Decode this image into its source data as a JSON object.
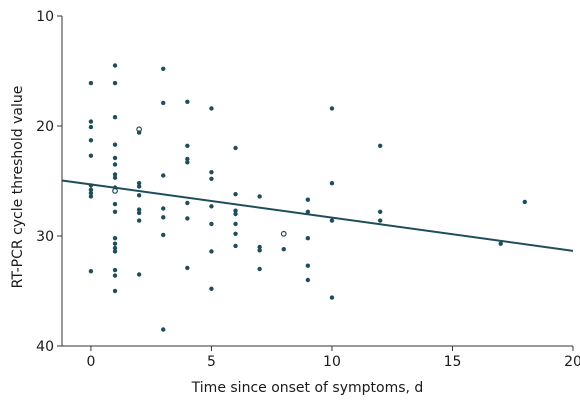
{
  "chart_data": {
    "type": "scatter",
    "title": "",
    "xlabel": "Time since onset of symptoms, d",
    "ylabel": "RT-PCR cycle threshold value",
    "xlim": [
      -1.2,
      20
    ],
    "ylim": [
      10,
      40
    ],
    "y_inverted": true,
    "xticks": [
      0,
      5,
      10,
      15,
      20
    ],
    "yticks": [
      10,
      20,
      30,
      40
    ],
    "grid": false,
    "legend": "none",
    "colors": {
      "point": "#1f4e5a",
      "trend": "#1f4e5a",
      "axis": "#333333"
    },
    "points": [
      {
        "x": 0,
        "y": 16.1
      },
      {
        "x": 0,
        "y": 19.6
      },
      {
        "x": 0,
        "y": 20.1
      },
      {
        "x": 0,
        "y": 21.3
      },
      {
        "x": 0,
        "y": 22.7
      },
      {
        "x": 0,
        "y": 25.4
      },
      {
        "x": 0,
        "y": 25.8
      },
      {
        "x": 0,
        "y": 26.1
      },
      {
        "x": 0,
        "y": 26.4
      },
      {
        "x": 0,
        "y": 33.2
      },
      {
        "x": 1,
        "y": 14.5
      },
      {
        "x": 1,
        "y": 16.1
      },
      {
        "x": 1,
        "y": 19.2
      },
      {
        "x": 1,
        "y": 21.7
      },
      {
        "x": 1,
        "y": 22.9
      },
      {
        "x": 1,
        "y": 23.5
      },
      {
        "x": 1,
        "y": 24.4
      },
      {
        "x": 1,
        "y": 24.7
      },
      {
        "x": 1,
        "y": 25.6
      },
      {
        "x": 1,
        "y": 25.9,
        "open": true
      },
      {
        "x": 1,
        "y": 27.1
      },
      {
        "x": 1,
        "y": 27.8
      },
      {
        "x": 1,
        "y": 30.2
      },
      {
        "x": 1,
        "y": 30.7
      },
      {
        "x": 1,
        "y": 31.1
      },
      {
        "x": 1,
        "y": 31.4
      },
      {
        "x": 1,
        "y": 33.1
      },
      {
        "x": 1,
        "y": 33.6
      },
      {
        "x": 1,
        "y": 35.0
      },
      {
        "x": 2,
        "y": 20.3,
        "open": true
      },
      {
        "x": 2,
        "y": 20.6
      },
      {
        "x": 2,
        "y": 25.2
      },
      {
        "x": 2,
        "y": 25.5
      },
      {
        "x": 2,
        "y": 26.3
      },
      {
        "x": 2,
        "y": 27.6
      },
      {
        "x": 2,
        "y": 27.9
      },
      {
        "x": 2,
        "y": 28.6
      },
      {
        "x": 2,
        "y": 33.5
      },
      {
        "x": 3,
        "y": 14.8
      },
      {
        "x": 3,
        "y": 17.9
      },
      {
        "x": 3,
        "y": 24.5
      },
      {
        "x": 3,
        "y": 27.5
      },
      {
        "x": 3,
        "y": 28.3
      },
      {
        "x": 3,
        "y": 29.9
      },
      {
        "x": 3,
        "y": 38.5
      },
      {
        "x": 4,
        "y": 17.8
      },
      {
        "x": 4,
        "y": 21.8
      },
      {
        "x": 4,
        "y": 23.0
      },
      {
        "x": 4,
        "y": 23.3
      },
      {
        "x": 4,
        "y": 27.0
      },
      {
        "x": 4,
        "y": 28.4
      },
      {
        "x": 4,
        "y": 32.9
      },
      {
        "x": 5,
        "y": 18.4
      },
      {
        "x": 5,
        "y": 24.2
      },
      {
        "x": 5,
        "y": 24.8
      },
      {
        "x": 5,
        "y": 27.3
      },
      {
        "x": 5,
        "y": 28.9
      },
      {
        "x": 5,
        "y": 31.4
      },
      {
        "x": 5,
        "y": 34.8
      },
      {
        "x": 6,
        "y": 22.0
      },
      {
        "x": 6,
        "y": 26.2
      },
      {
        "x": 6,
        "y": 27.7
      },
      {
        "x": 6,
        "y": 28.0
      },
      {
        "x": 6,
        "y": 28.9
      },
      {
        "x": 6,
        "y": 29.8
      },
      {
        "x": 6,
        "y": 30.9
      },
      {
        "x": 7,
        "y": 26.4
      },
      {
        "x": 7,
        "y": 31.0
      },
      {
        "x": 7,
        "y": 31.3
      },
      {
        "x": 7,
        "y": 33.0
      },
      {
        "x": 8,
        "y": 29.8,
        "open": true
      },
      {
        "x": 8,
        "y": 31.2
      },
      {
        "x": 9,
        "y": 26.7
      },
      {
        "x": 9,
        "y": 27.8
      },
      {
        "x": 9,
        "y": 30.2
      },
      {
        "x": 9,
        "y": 32.7
      },
      {
        "x": 9,
        "y": 34.0
      },
      {
        "x": 10,
        "y": 18.4
      },
      {
        "x": 10,
        "y": 25.2
      },
      {
        "x": 10,
        "y": 28.6
      },
      {
        "x": 10,
        "y": 35.6
      },
      {
        "x": 12,
        "y": 21.8
      },
      {
        "x": 12,
        "y": 27.8
      },
      {
        "x": 12,
        "y": 28.6
      },
      {
        "x": 17,
        "y": 30.7
      },
      {
        "x": 18,
        "y": 26.9
      }
    ],
    "trendline": {
      "x": [
        -1.2,
        20
      ],
      "y": [
        24.95,
        31.35
      ]
    }
  }
}
